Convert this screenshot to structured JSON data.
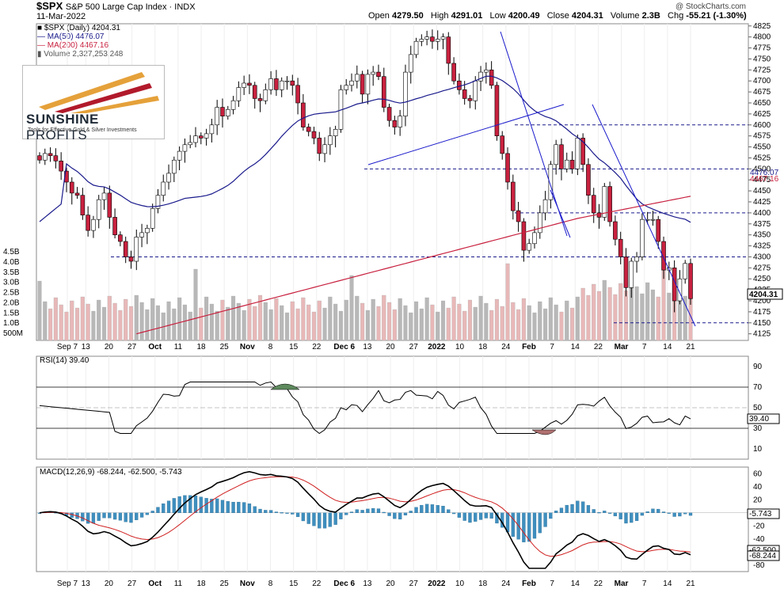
{
  "header": {
    "symbol": "$SPX",
    "name": "S&P 500 Large Cap Index",
    "exchange": "INDX",
    "date": "11-Mar-2022",
    "open_label": "Open",
    "open": "4279.50",
    "high_label": "High",
    "high": "4291.01",
    "low_label": "Low",
    "low": "4200.49",
    "close_label": "Close",
    "close": "4204.31",
    "volume_label": "Volume",
    "volume": "2.3B",
    "chg_label": "Chg",
    "chg": "-55.21 (-1.30%)",
    "credit": "@ StockCharts.com"
  },
  "legend": {
    "price": "$SPX (Daily) 4204.31",
    "ma50": "MA(50) 4476.07",
    "ma200": "MA(200) 4467.16",
    "volume": "Volume 2,327,253,248"
  },
  "logo": {
    "brand_bold": "SUNSHINE",
    "brand_light": " PROFITS",
    "tagline": "Tools for Effective Gold & Silver Investments"
  },
  "colors": {
    "up": "#ffffff",
    "down": "#c8213f",
    "ma50": "#1a1a8c",
    "ma200": "#c8213f",
    "trend": "#1a1acc",
    "rsi_over": "#5e8a5e",
    "rsi_under": "#b07070",
    "macd_hist": "#3f8fbf",
    "vol_up": "#b8b8b8",
    "vol_down": "#e8b8b8"
  },
  "chart_data": [
    {
      "type": "candlestick",
      "title": "$SPX S&P 500 Large Cap Index",
      "x_ticks": [
        "Sep 7",
        "13",
        "20",
        "27",
        "Oct",
        "11",
        "18",
        "25",
        "Nov",
        "8",
        "15",
        "22",
        "Dec 6",
        "13",
        "20",
        "27",
        "2022",
        "10",
        "18",
        "24",
        "Feb",
        "7",
        "14",
        "22",
        "Mar",
        "7",
        "14",
        "21"
      ],
      "y_ticks": [
        4125,
        4150,
        4175,
        4200,
        4225,
        4250,
        4275,
        4300,
        4325,
        4350,
        4375,
        4400,
        4425,
        4450,
        4475,
        4500,
        4525,
        4550,
        4575,
        4600,
        4625,
        4650,
        4675,
        4700,
        4725,
        4750,
        4775,
        4800,
        4825
      ],
      "ylim": [
        4110,
        4830
      ],
      "volume_ticks": [
        "4.5B",
        "4.0B",
        "3.5B",
        "3.0B",
        "2.5B",
        "2.0B",
        "1.5B",
        "1.0B",
        "500M"
      ],
      "horizontal_levels": [
        4600,
        4500,
        4400,
        4300,
        4150
      ],
      "last_value_labels": [
        "4476.07",
        "4467.16",
        "4204.31"
      ],
      "close_series": [
        4520,
        4535,
        4530,
        4518,
        4495,
        4470,
        4445,
        4440,
        4395,
        4360,
        4385,
        4430,
        4445,
        4390,
        4350,
        4335,
        4300,
        4290,
        4345,
        4355,
        4365,
        4410,
        4440,
        4470,
        4490,
        4520,
        4540,
        4555,
        4560,
        4575,
        4570,
        4580,
        4600,
        4640,
        4620,
        4635,
        4655,
        4685,
        4695,
        4690,
        4660,
        4655,
        4680,
        4705,
        4680,
        4700,
        4700,
        4690,
        4650,
        4595,
        4585,
        4570,
        4535,
        4555,
        4575,
        4590,
        4680,
        4690,
        4700,
        4715,
        4670,
        4715,
        4720,
        4710,
        4640,
        4610,
        4595,
        4620,
        4720,
        4760,
        4790,
        4795,
        4800,
        4790,
        4795,
        4800,
        4740,
        4700,
        4680,
        4660,
        4655,
        4700,
        4720,
        4725,
        4690,
        4575,
        4535,
        4470,
        4405,
        4380,
        4315,
        4330,
        4355,
        4400,
        4430,
        4510,
        4555,
        4500,
        4520,
        4500,
        4570,
        4510,
        4440,
        4400,
        4390,
        4460,
        4380,
        4340,
        4300,
        4230,
        4290,
        4300,
        4385,
        4385,
        4385,
        4335,
        4270,
        4275,
        4200,
        4250,
        4285,
        4205
      ]
    },
    {
      "type": "line",
      "title": "RSI(14) 39.40",
      "y_ticks": [
        90,
        70,
        50,
        30,
        10
      ],
      "ylim": [
        0,
        100
      ],
      "levels": [
        70,
        30
      ],
      "last_value": "39.40"
    },
    {
      "type": "line",
      "title": "MACD(12,26,9) -68.244, -62.500, -5.743",
      "series": [
        {
          "name": "MACD(12,26,9)"
        },
        {
          "name": "signal"
        },
        {
          "name": "histogram"
        }
      ],
      "y_ticks": [
        60,
        40,
        20,
        0,
        -20,
        -40,
        -60,
        -80
      ],
      "ylim": [
        -90,
        70
      ],
      "last_value_labels": [
        "-5.743",
        "-62.500",
        "-68.244"
      ]
    }
  ]
}
